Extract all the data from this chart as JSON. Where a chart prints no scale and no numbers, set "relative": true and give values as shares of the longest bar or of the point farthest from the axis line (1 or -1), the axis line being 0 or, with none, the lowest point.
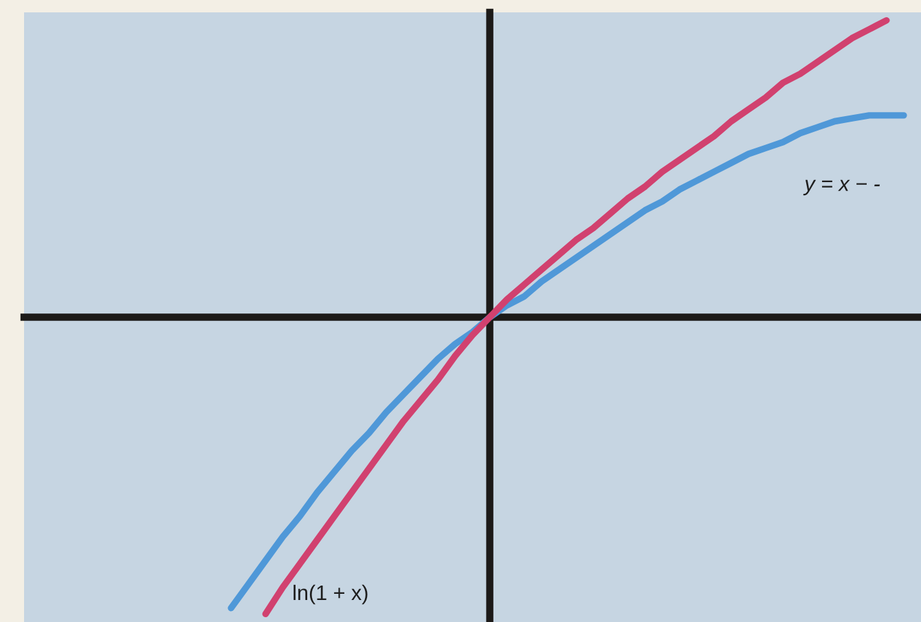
{
  "chart_data": {
    "type": "line",
    "relative": true,
    "categories": [
      null,
      null,
      null,
      null,
      null,
      null,
      null,
      null,
      null,
      null,
      null,
      null,
      null,
      null,
      null,
      null,
      null,
      null,
      null,
      null,
      null,
      null,
      null,
      null,
      null,
      null,
      null,
      null,
      null,
      null,
      null,
      null,
      null,
      null,
      null,
      null,
      null,
      null,
      null,
      null,
      null,
      null,
      null,
      null,
      null,
      null,
      null,
      null,
      null,
      null,
      null,
      null,
      null
    ],
    "series": [
      {
        "name": "y = x − -",
        "color": "#4f98d8",
        "values": [
          null,
          null,
          null,
          null,
          null,
          null,
          null,
          null,
          null,
          null,
          null,
          null,
          -0.98,
          -0.9,
          -0.82,
          -0.74,
          -0.67,
          -0.59,
          -0.52,
          -0.45,
          -0.39,
          -0.32,
          -0.26,
          -0.2,
          -0.14,
          -0.09,
          -0.05,
          0,
          0.04,
          0.07,
          0.12,
          0.16,
          0.2,
          0.24,
          0.28,
          0.32,
          0.36,
          0.39,
          0.43,
          0.46,
          0.49,
          0.52,
          0.55,
          0.57,
          0.59,
          0.62,
          0.64,
          0.66,
          0.67,
          0.68,
          0.68,
          0.68,
          null
        ]
      },
      {
        "name": "ln(1 + x)",
        "color": "#d1416f",
        "values": [
          null,
          null,
          null,
          null,
          null,
          null,
          null,
          null,
          null,
          null,
          null,
          null,
          null,
          null,
          -1.0,
          -0.91,
          -0.83,
          -0.75,
          -0.67,
          -0.59,
          -0.51,
          -0.43,
          -0.35,
          -0.28,
          -0.21,
          -0.13,
          -0.06,
          0,
          0.06,
          0.11,
          0.16,
          0.21,
          0.26,
          0.3,
          0.35,
          0.4,
          0.44,
          0.49,
          0.53,
          0.57,
          0.61,
          0.66,
          0.7,
          0.74,
          0.79,
          0.82,
          0.86,
          0.9,
          0.94,
          0.97,
          1.0,
          null,
          null
        ]
      }
    ]
  }
}
